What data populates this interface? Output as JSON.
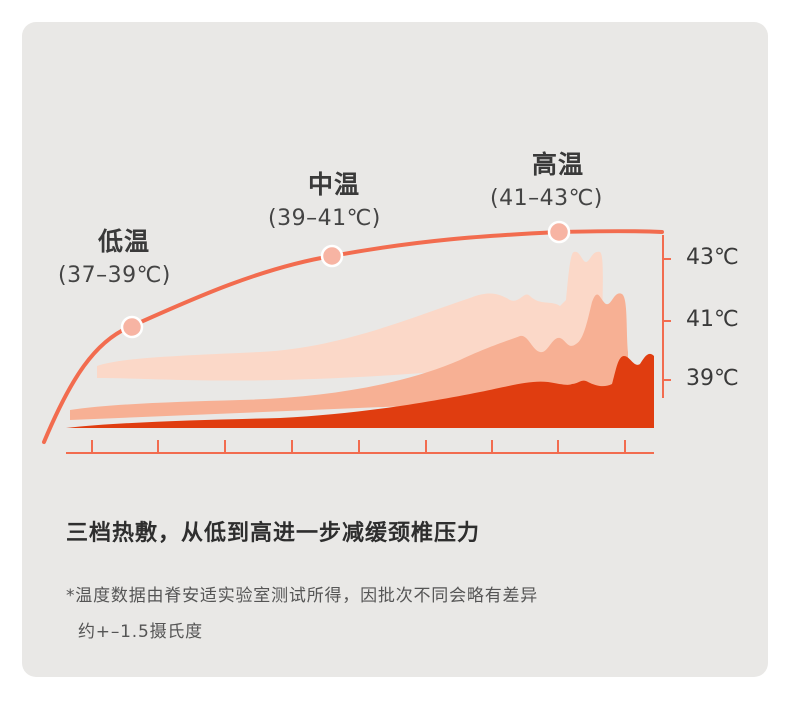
{
  "chart_data": {
    "type": "area",
    "levels": [
      {
        "name": "低温",
        "range": "(37–39℃)"
      },
      {
        "name": "中温",
        "range": "(39–41℃)"
      },
      {
        "name": "高温",
        "range": "(41–43℃)"
      }
    ],
    "y_tick_labels": [
      "43℃",
      "41℃",
      "39℃"
    ],
    "colors": {
      "curve": "#f26c4f",
      "marker": "#f7b4a3",
      "low": "#e03d10",
      "mid": "#f7b094",
      "high": "#fbd8c8"
    }
  },
  "headline": "三档热敷，从低到高进一步减缓颈椎压力",
  "footnote": {
    "line1": "*温度数据由脊安适实验室测试所得，因批次不同会略有差异",
    "line2": "约+–1.5摄氏度"
  }
}
